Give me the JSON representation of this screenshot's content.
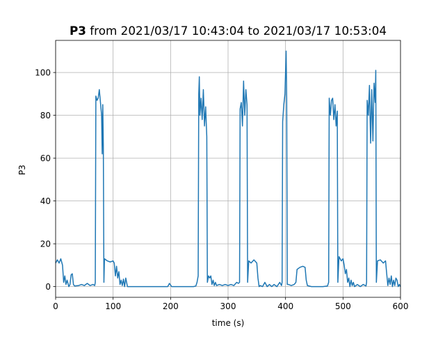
{
  "chart_data": {
    "type": "line",
    "title": {
      "bold": "P3",
      "rest": " from 2021/03/17 10:43:04 to 2021/03/17 10:53:04"
    },
    "xlabel": "time (s)",
    "ylabel": "P3",
    "xlim": [
      0,
      600
    ],
    "ylim": [
      -5,
      115
    ],
    "xticks": [
      0,
      100,
      200,
      300,
      400,
      500,
      600
    ],
    "yticks": [
      0,
      20,
      40,
      60,
      80,
      100
    ],
    "grid": true,
    "line_color": "#1f77b4",
    "series": [
      {
        "points": [
          [
            0,
            11
          ],
          [
            3,
            12.5
          ],
          [
            6,
            11
          ],
          [
            9,
            13
          ],
          [
            12,
            10
          ],
          [
            14,
            2
          ],
          [
            16,
            5
          ],
          [
            18,
            1
          ],
          [
            20,
            3
          ],
          [
            23,
            0
          ],
          [
            25,
            1
          ],
          [
            27,
            5.5
          ],
          [
            29,
            6
          ],
          [
            31,
            1
          ],
          [
            33,
            0.3
          ],
          [
            40,
            0.5
          ],
          [
            45,
            1
          ],
          [
            50,
            0.5
          ],
          [
            55,
            1.5
          ],
          [
            60,
            0.5
          ],
          [
            65,
            1
          ],
          [
            68,
            0.5
          ],
          [
            69,
            2
          ],
          [
            70,
            89
          ],
          [
            72,
            87
          ],
          [
            74,
            88
          ],
          [
            76,
            92
          ],
          [
            78,
            86
          ],
          [
            80,
            80
          ],
          [
            81,
            62
          ],
          [
            82,
            85
          ],
          [
            83,
            66
          ],
          [
            84,
            2
          ],
          [
            85,
            13
          ],
          [
            90,
            12
          ],
          [
            95,
            11.5
          ],
          [
            100,
            12
          ],
          [
            102,
            11
          ],
          [
            104,
            5
          ],
          [
            106,
            9.5
          ],
          [
            108,
            4
          ],
          [
            110,
            7
          ],
          [
            112,
            1
          ],
          [
            114,
            3
          ],
          [
            116,
            0.5
          ],
          [
            118,
            3.5
          ],
          [
            120,
            0
          ],
          [
            122,
            4
          ],
          [
            125,
            0
          ],
          [
            140,
            0
          ],
          [
            160,
            0
          ],
          [
            180,
            0
          ],
          [
            195,
            0
          ],
          [
            198,
            1.5
          ],
          [
            202,
            0
          ],
          [
            225,
            0
          ],
          [
            240,
            0
          ],
          [
            244,
            0.3
          ],
          [
            246,
            2
          ],
          [
            248,
            5
          ],
          [
            249,
            90
          ],
          [
            250,
            98
          ],
          [
            251,
            80
          ],
          [
            253,
            88
          ],
          [
            255,
            78
          ],
          [
            257,
            92
          ],
          [
            259,
            75
          ],
          [
            261,
            84
          ],
          [
            263,
            70
          ],
          [
            264,
            2
          ],
          [
            266,
            5
          ],
          [
            268,
            4
          ],
          [
            270,
            5
          ],
          [
            272,
            1
          ],
          [
            274,
            3
          ],
          [
            276,
            0.5
          ],
          [
            278,
            2
          ],
          [
            280,
            0.5
          ],
          [
            285,
            1
          ],
          [
            290,
            0.5
          ],
          [
            295,
            1
          ],
          [
            300,
            0.5
          ],
          [
            305,
            1
          ],
          [
            310,
            0.5
          ],
          [
            315,
            2
          ],
          [
            318,
            1.5
          ],
          [
            320,
            2
          ],
          [
            321,
            83
          ],
          [
            323,
            86
          ],
          [
            325,
            75
          ],
          [
            327,
            96
          ],
          [
            329,
            80
          ],
          [
            331,
            92
          ],
          [
            333,
            85
          ],
          [
            334,
            2
          ],
          [
            336,
            12
          ],
          [
            340,
            11
          ],
          [
            345,
            12.5
          ],
          [
            350,
            11
          ],
          [
            352,
            4
          ],
          [
            354,
            0
          ],
          [
            356,
            0.5
          ],
          [
            360,
            0
          ],
          [
            364,
            2
          ],
          [
            368,
            0
          ],
          [
            372,
            1
          ],
          [
            376,
            0
          ],
          [
            380,
            1
          ],
          [
            385,
            0
          ],
          [
            390,
            2
          ],
          [
            393,
            0.5
          ],
          [
            394,
            2
          ],
          [
            395,
            77
          ],
          [
            397,
            85
          ],
          [
            399,
            90
          ],
          [
            401,
            110
          ],
          [
            402,
            88
          ],
          [
            403,
            1
          ],
          [
            405,
            1
          ],
          [
            410,
            0.5
          ],
          [
            415,
            1
          ],
          [
            418,
            2
          ],
          [
            420,
            8
          ],
          [
            425,
            9
          ],
          [
            430,
            9.5
          ],
          [
            434,
            9
          ],
          [
            436,
            3
          ],
          [
            438,
            0.5
          ],
          [
            445,
            0
          ],
          [
            455,
            0
          ],
          [
            465,
            0
          ],
          [
            473,
            0.3
          ],
          [
            475,
            2
          ],
          [
            476,
            88
          ],
          [
            478,
            80
          ],
          [
            480,
            87
          ],
          [
            482,
            88
          ],
          [
            484,
            78
          ],
          [
            486,
            85
          ],
          [
            488,
            75
          ],
          [
            490,
            82
          ],
          [
            491,
            2
          ],
          [
            493,
            14
          ],
          [
            497,
            12
          ],
          [
            500,
            13
          ],
          [
            502,
            10
          ],
          [
            504,
            6
          ],
          [
            506,
            8
          ],
          [
            508,
            2
          ],
          [
            510,
            4
          ],
          [
            512,
            0
          ],
          [
            514,
            3
          ],
          [
            516,
            0.5
          ],
          [
            518,
            2
          ],
          [
            520,
            0
          ],
          [
            525,
            1
          ],
          [
            530,
            0
          ],
          [
            535,
            1
          ],
          [
            540,
            0.3
          ],
          [
            541,
            2
          ],
          [
            542,
            87
          ],
          [
            544,
            80
          ],
          [
            546,
            94
          ],
          [
            548,
            67
          ],
          [
            550,
            92
          ],
          [
            552,
            68
          ],
          [
            554,
            95
          ],
          [
            556,
            86
          ],
          [
            557,
            101
          ],
          [
            558,
            2
          ],
          [
            560,
            12
          ],
          [
            565,
            12.5
          ],
          [
            570,
            11
          ],
          [
            574,
            12
          ],
          [
            576,
            6
          ],
          [
            578,
            0.5
          ],
          [
            580,
            4
          ],
          [
            582,
            1
          ],
          [
            584,
            5
          ],
          [
            586,
            0
          ],
          [
            588,
            3
          ],
          [
            590,
            0.5
          ],
          [
            592,
            4
          ],
          [
            594,
            3
          ],
          [
            596,
            0
          ],
          [
            598,
            1
          ],
          [
            600,
            0
          ]
        ]
      }
    ]
  }
}
